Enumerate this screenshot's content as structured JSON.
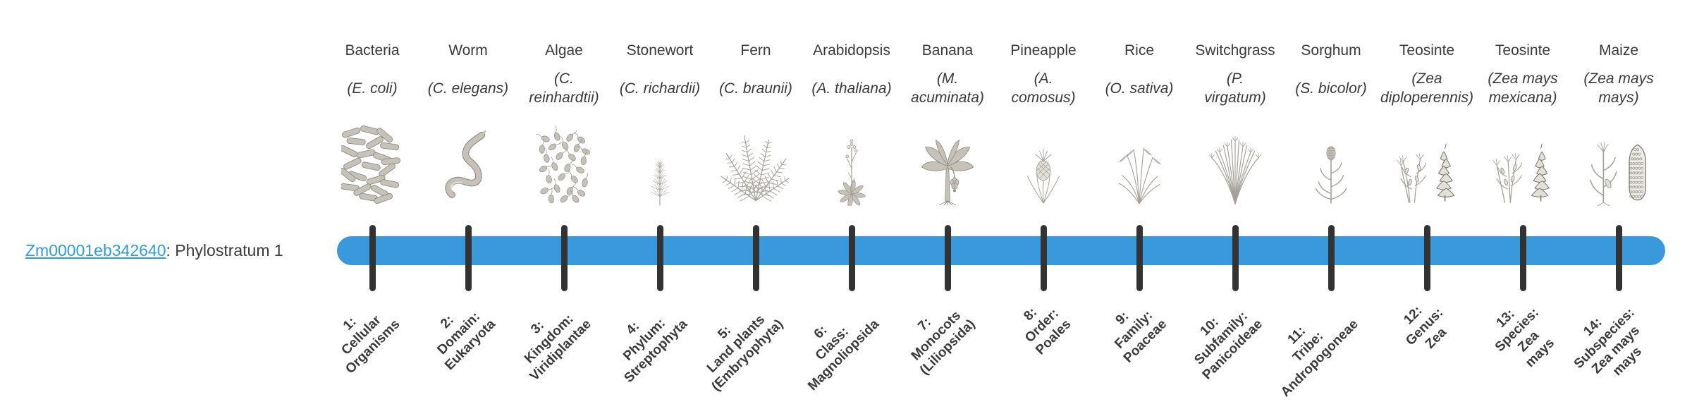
{
  "gene": {
    "id_label": "Zm00001eb342640",
    "annotation": ": Phylostratum 1"
  },
  "colors": {
    "bar_blue": "#3999dc",
    "tick_dark": "#333333",
    "link_blue": "#2f9cdc",
    "text_dark": "#3a3a3a",
    "sketch_fill": "#c6c2b9",
    "sketch_stroke": "#8f8b82",
    "sketch_light": "#e3e0da",
    "sketch_dark": "#7d7970",
    "sketch_thin": "#a5a198"
  },
  "taxa": [
    {
      "common": "Bacteria",
      "scientific_lines": [
        "(E. coli)"
      ],
      "icon": "bacteria"
    },
    {
      "common": "Worm",
      "scientific_lines": [
        "(C. elegans)"
      ],
      "icon": "worm"
    },
    {
      "common": "Algae",
      "scientific_lines": [
        "(C.",
        "reinhardtii)"
      ],
      "icon": "algae"
    },
    {
      "common": "Stonewort",
      "scientific_lines": [
        "(C. richardii)"
      ],
      "icon": "stonewort"
    },
    {
      "common": "Fern",
      "scientific_lines": [
        "(C. braunii)"
      ],
      "icon": "fern"
    },
    {
      "common": "Arabidopsis",
      "scientific_lines": [
        "(A. thaliana)"
      ],
      "icon": "arabidopsis"
    },
    {
      "common": "Banana",
      "scientific_lines": [
        "(M.",
        "acuminata)"
      ],
      "icon": "banana"
    },
    {
      "common": "Pineapple",
      "scientific_lines": [
        "(A.",
        "comosus)"
      ],
      "icon": "pineapple"
    },
    {
      "common": "Rice",
      "scientific_lines": [
        "(O. sativa)"
      ],
      "icon": "rice"
    },
    {
      "common": "Switchgrass",
      "scientific_lines": [
        "(P.",
        "virgatum)"
      ],
      "icon": "switchgrass"
    },
    {
      "common": "Sorghum",
      "scientific_lines": [
        "(S. bicolor)"
      ],
      "icon": "sorghum"
    },
    {
      "common": "Teosinte",
      "scientific_lines": [
        "(Zea",
        "diploperennis)"
      ],
      "icon": "teosinte-diploperennis"
    },
    {
      "common": "Teosinte",
      "scientific_lines": [
        "(Zea mays",
        "mexicana)"
      ],
      "icon": "teosinte-mexicana"
    },
    {
      "common": "Maize",
      "scientific_lines": [
        "(Zea mays",
        "mays)"
      ],
      "icon": "maize"
    }
  ],
  "strata": [
    {
      "lines": [
        "1:",
        "Cellular",
        "Organisms"
      ]
    },
    {
      "lines": [
        "2:",
        "Domain:",
        "Eukaryota"
      ]
    },
    {
      "lines": [
        "3:",
        "Kingdom:",
        "Viridiplantae"
      ]
    },
    {
      "lines": [
        "4:",
        "Phylum:",
        "Streptophyta"
      ]
    },
    {
      "lines": [
        "5:",
        "Land plants",
        "(Embryophyta)"
      ]
    },
    {
      "lines": [
        "6:",
        "Class:",
        "Magnoliopsida"
      ]
    },
    {
      "lines": [
        "7:",
        "Monocots",
        "(Liliopsida)"
      ]
    },
    {
      "lines": [
        "8:",
        "Order:",
        "Poales"
      ]
    },
    {
      "lines": [
        "9:",
        "Family:",
        "Poaceae"
      ]
    },
    {
      "lines": [
        "10:",
        "Subfamily:",
        "Panicoideae"
      ]
    },
    {
      "lines": [
        "11:",
        "Tribe:",
        "Andropogoneae"
      ]
    },
    {
      "lines": [
        "12:",
        "Genus:",
        "Zea"
      ]
    },
    {
      "lines": [
        "13:",
        "Species:",
        "Zea",
        "mays"
      ]
    },
    {
      "lines": [
        "14:",
        "Subspecies:",
        "Zea mays",
        "mays"
      ]
    }
  ]
}
